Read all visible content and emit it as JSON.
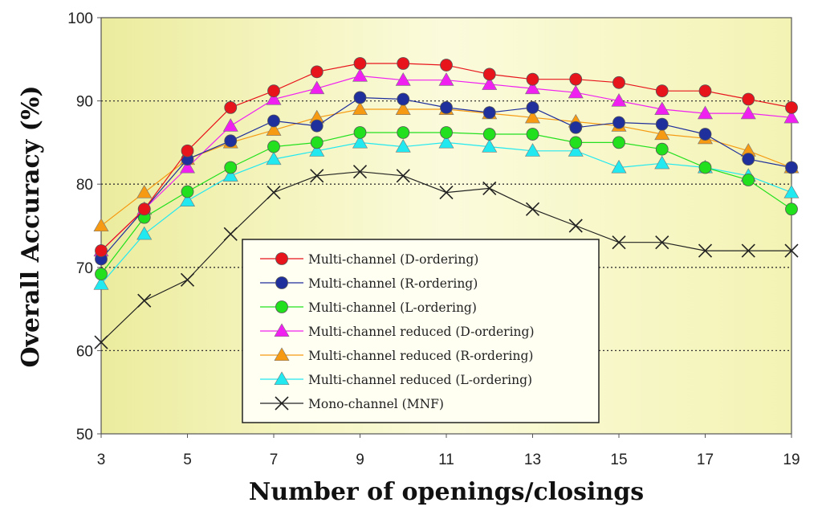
{
  "chart_data": {
    "type": "line",
    "title": "",
    "xlabel": "Number of openings/closings",
    "ylabel": "Overall Accuracy (%)",
    "x": [
      3,
      4,
      5,
      6,
      7,
      8,
      9,
      10,
      11,
      12,
      13,
      14,
      15,
      16,
      17,
      18,
      19
    ],
    "x_ticks": [
      3,
      5,
      7,
      9,
      11,
      13,
      15,
      17,
      19
    ],
    "y_ticks": [
      50,
      60,
      70,
      80,
      90,
      100
    ],
    "xlim": [
      3,
      19
    ],
    "ylim": [
      50,
      100
    ],
    "grid": "horizontal dotted at 60, 70, 80, 90",
    "legend_position": "center-bottom (inside plot)",
    "series": [
      {
        "name": "Multi-channel (D-ordering)",
        "color": "#e8141c",
        "marker": "circle",
        "values": [
          72,
          77,
          84,
          89.2,
          91.2,
          93.5,
          94.5,
          94.5,
          94.3,
          93.2,
          92.6,
          92.6,
          92.2,
          91.2,
          91.2,
          90.2,
          89.2
        ]
      },
      {
        "name": "Multi-channel (R-ordering)",
        "color": "#1f2f9c",
        "marker": "circle",
        "values": [
          71,
          77,
          83,
          85.2,
          87.6,
          87,
          90.4,
          90.2,
          89.2,
          88.6,
          89.2,
          86.8,
          87.4,
          87.2,
          86,
          83,
          82
        ]
      },
      {
        "name": "Multi-channel (L-ordering)",
        "color": "#22e01e",
        "marker": "circle",
        "values": [
          69.2,
          76,
          79.1,
          82,
          84.5,
          85,
          86.2,
          86.2,
          86.2,
          86,
          86,
          85,
          85,
          84.2,
          82,
          80.5,
          77
        ]
      },
      {
        "name": "Multi-channel reduced (D-ordering)",
        "color": "#f020f0",
        "marker": "triangle",
        "values": [
          72,
          77,
          82,
          87,
          90.2,
          91.5,
          93,
          92.5,
          92.5,
          92,
          91.5,
          91,
          90,
          89,
          88.5,
          88.5,
          88
        ]
      },
      {
        "name": "Multi-channel reduced (R-ordering)",
        "color": "#f59a12",
        "marker": "triangle",
        "values": [
          75,
          79,
          83,
          85,
          86.5,
          88,
          89,
          89,
          89,
          88.5,
          88,
          87.5,
          87,
          86,
          85.5,
          84,
          82
        ]
      },
      {
        "name": "Multi-channel reduced (L-ordering)",
        "color": "#22e8f0",
        "marker": "triangle",
        "values": [
          68,
          74,
          78,
          81,
          83,
          84,
          85,
          84.5,
          85,
          84.5,
          84,
          84,
          82,
          82.5,
          82,
          81,
          79
        ]
      },
      {
        "name": "Mono-channel (MNF)",
        "color": "#222222",
        "marker": "x",
        "values": [
          61,
          66,
          68.5,
          74,
          79,
          81,
          81.5,
          81,
          79,
          79.5,
          77,
          75,
          73,
          73,
          72,
          72,
          72
        ]
      }
    ]
  }
}
